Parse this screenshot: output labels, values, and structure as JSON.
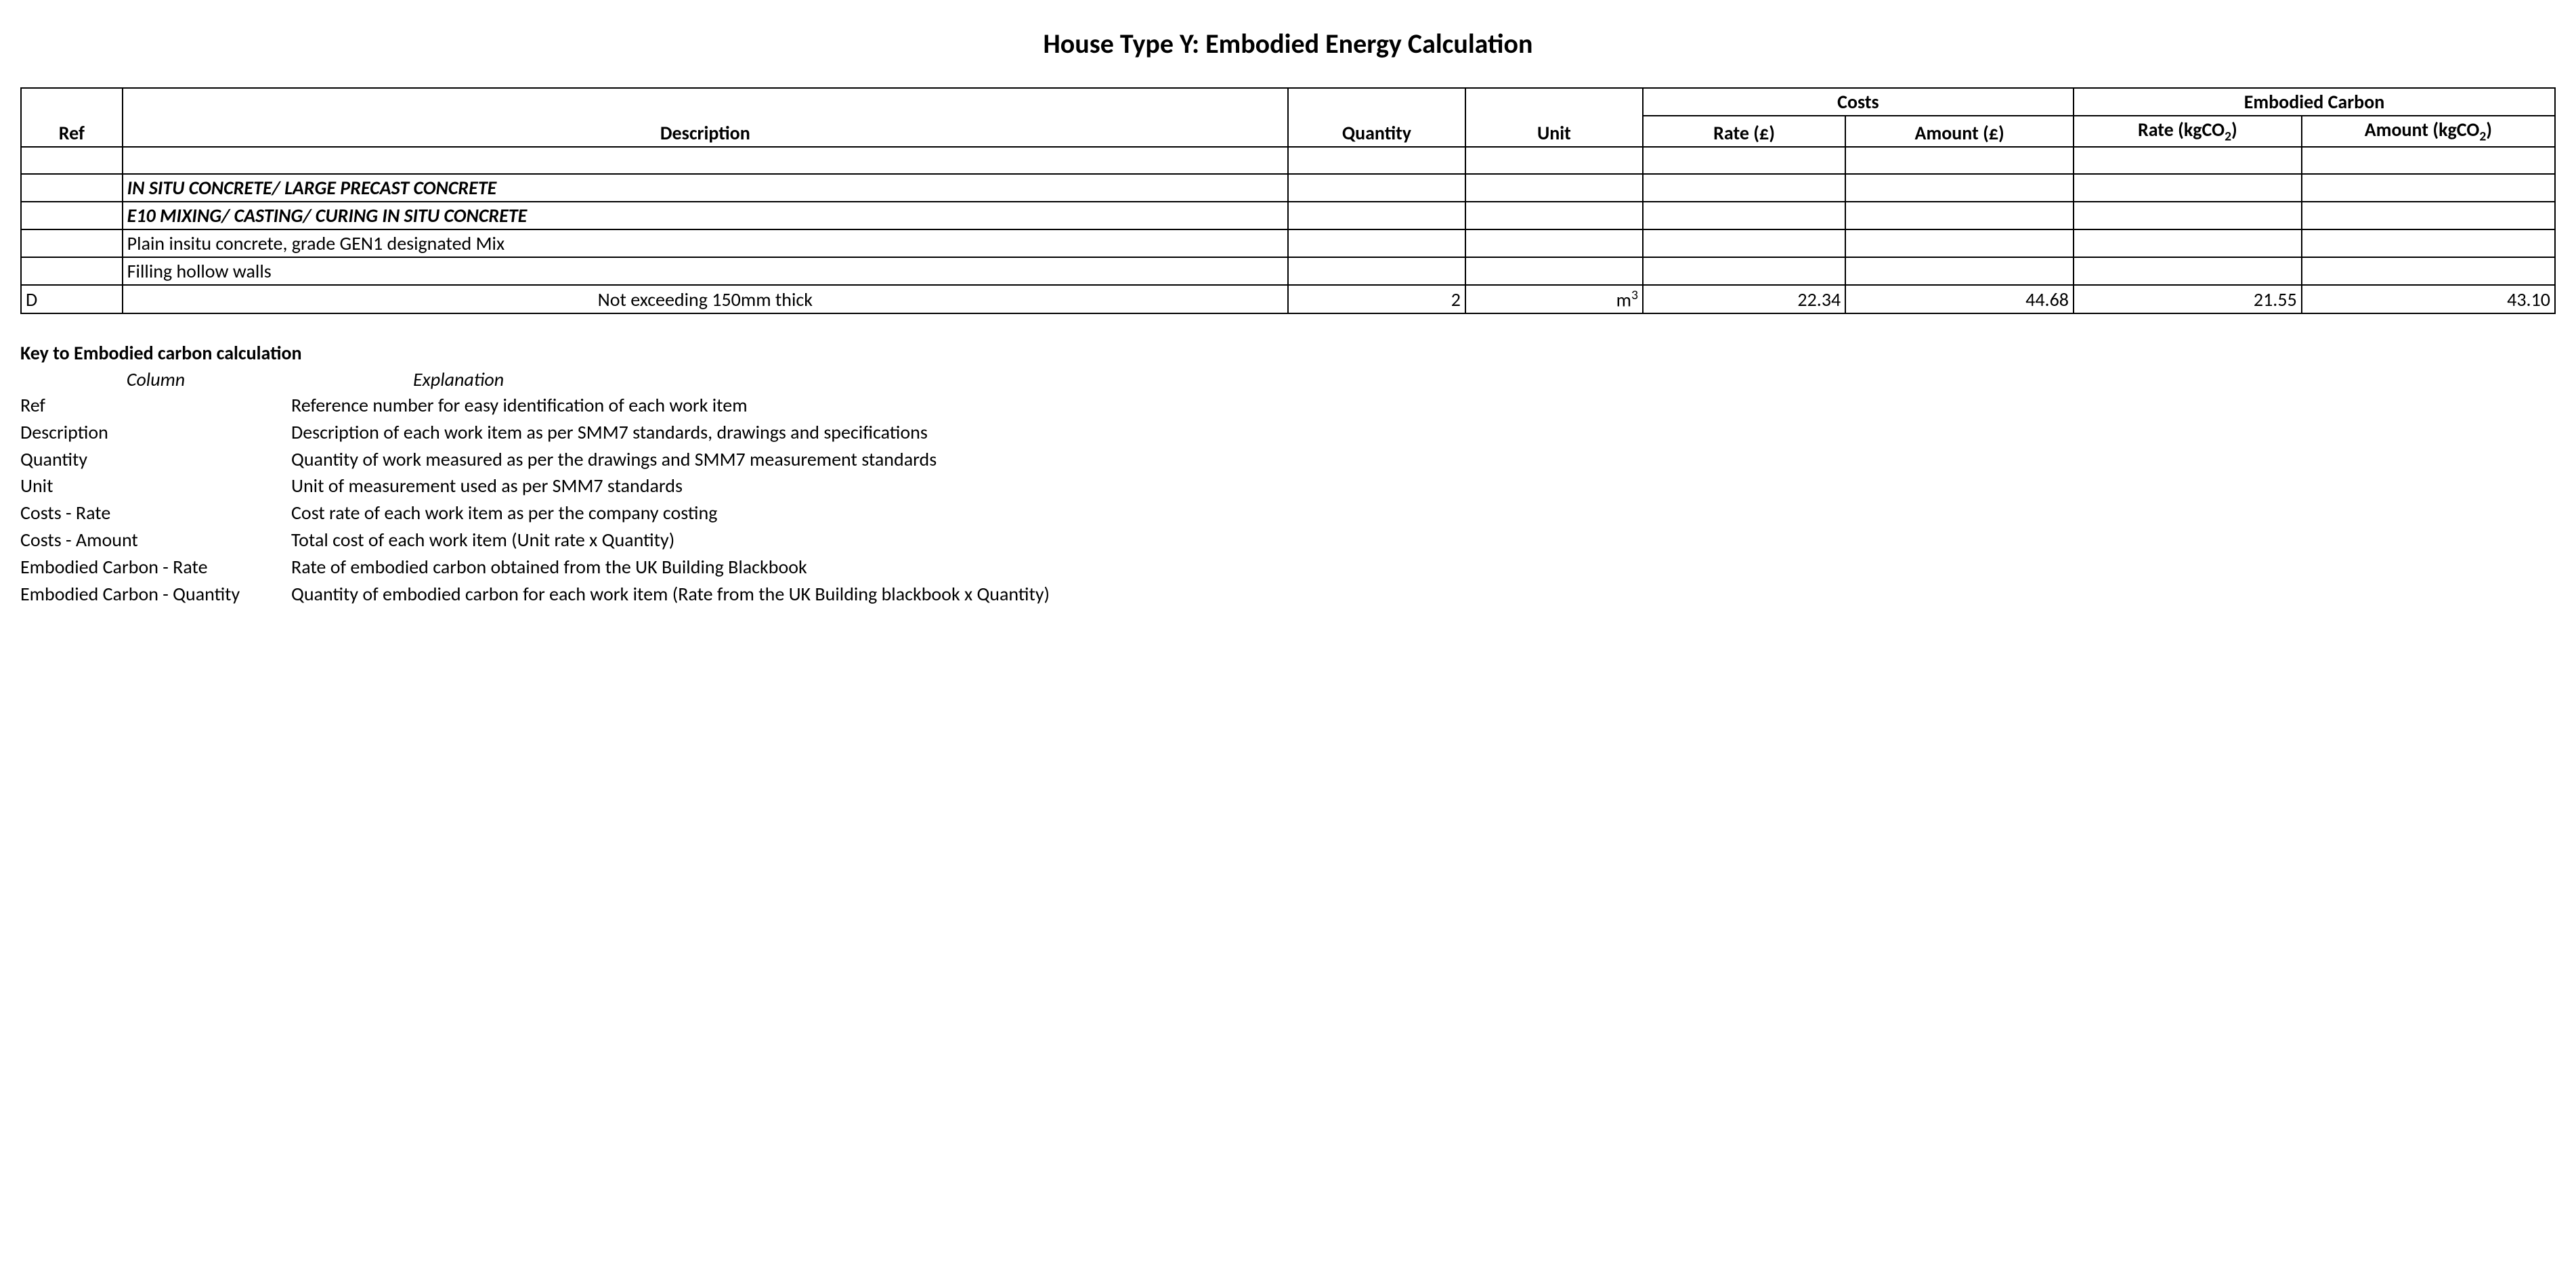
{
  "title": "House Type Y: Embodied Energy Calculation",
  "table": {
    "headers": {
      "ref": "Ref",
      "description": "Description",
      "quantity": "Quantity",
      "unit": "Unit",
      "costs_group": "Costs",
      "embodied_group": "Embodied Carbon",
      "cost_rate": "Rate (£)",
      "cost_amount": "Amount (£)",
      "emb_rate_prefix": "Rate (kgCO",
      "emb_rate_suffix": ")",
      "emb_amount_prefix": "Amount (kgCO",
      "emb_amount_suffix": ")"
    },
    "rows": [
      {
        "type": "blank"
      },
      {
        "type": "section",
        "desc": "IN SITU CONCRETE/ LARGE PRECAST CONCRETE"
      },
      {
        "type": "section",
        "desc": "E10 MIXING/ CASTING/ CURING IN SITU CONCRETE"
      },
      {
        "type": "plain",
        "desc": "Plain insitu concrete, grade GEN1 designated Mix"
      },
      {
        "type": "plain",
        "desc": "Filling hollow walls"
      },
      {
        "type": "data",
        "ref": "D",
        "desc": "Not exceeding 150mm thick",
        "qty": "2",
        "unit_pre": "m",
        "unit_sup": "3",
        "cost_rate": "22.34",
        "cost_amount": "44.68",
        "emb_rate": "21.55",
        "emb_amount": "43.10"
      }
    ]
  },
  "key": {
    "title": "Key to Embodied carbon calculation",
    "col_header": "Column",
    "exp_header": "Explanation",
    "items": [
      {
        "col": "Ref",
        "exp": "Reference number for easy identification of each work item"
      },
      {
        "col": "Description",
        "exp": "Description of each work item as per SMM7 standards, drawings and specifications"
      },
      {
        "col": "Quantity",
        "exp": "Quantity of work measured as per the drawings and SMM7 measurement standards"
      },
      {
        "col": "Unit",
        "exp": "Unit of measurement used as per SMM7 standards"
      },
      {
        "col": "Costs - Rate",
        "exp": "Cost rate of each work item as per the company costing"
      },
      {
        "col": "Costs - Amount",
        "exp": "Total cost of each work item (Unit rate x Quantity)"
      },
      {
        "col": "Embodied Carbon - Rate",
        "exp": "Rate of embodied carbon obtained from the UK Building Blackbook"
      },
      {
        "col": "Embodied Carbon - Quantity",
        "exp": "Quantity of embodied carbon for each work item (Rate from the UK Building blackbook x Quantity)"
      }
    ]
  },
  "style": {
    "background_color": "#ffffff",
    "text_color": "#000000",
    "border_color": "#000000",
    "title_fontsize": 40,
    "body_fontsize": 28,
    "font_family": "Calibri"
  }
}
